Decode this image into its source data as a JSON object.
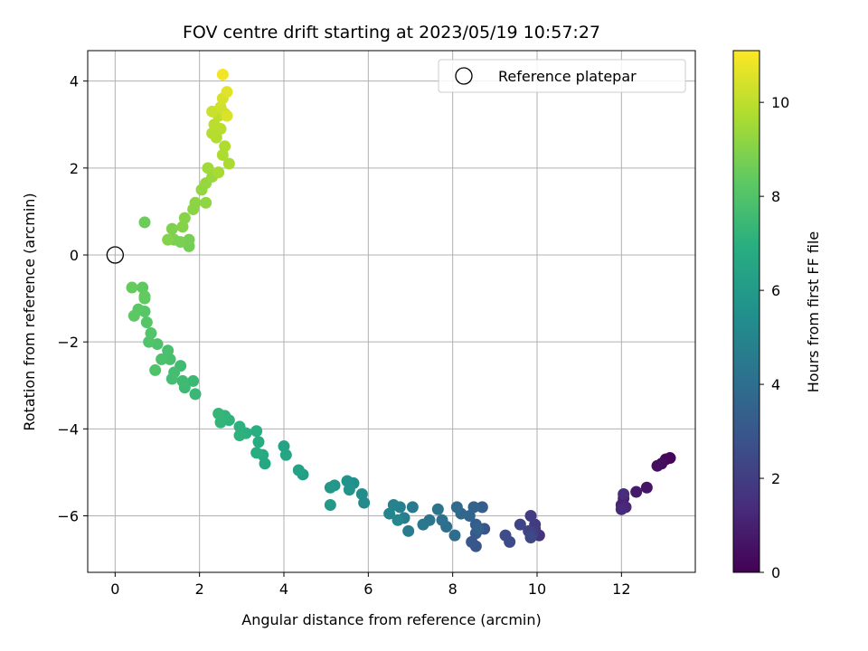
{
  "chart_data": {
    "type": "scatter",
    "title": "FOV centre drift starting at 2023/05/19 10:57:27",
    "xlabel": "Angular distance from reference (arcmin)",
    "ylabel": "Rotation from reference (arcmin)",
    "xlim": [
      -0.65,
      13.75
    ],
    "ylim": [
      -7.3,
      4.7
    ],
    "xticks": [
      0,
      2,
      4,
      6,
      8,
      10,
      12
    ],
    "yticks": [
      -6,
      -4,
      -2,
      0,
      2,
      4
    ],
    "grid": true,
    "legend": {
      "location": "top-right",
      "entries": [
        "Reference platepar"
      ]
    },
    "reference_point": {
      "x": 0,
      "y": 0,
      "label": "Reference platepar"
    },
    "colorbar": {
      "label": "Hours from first FF file",
      "range": [
        0,
        11.1
      ],
      "ticks": [
        0,
        2,
        4,
        6,
        8,
        10
      ],
      "colormap": "viridis"
    },
    "points": [
      [
        13.15,
        -4.67,
        0.1
      ],
      [
        13.05,
        -4.7,
        0.2
      ],
      [
        12.95,
        -4.8,
        0.3
      ],
      [
        12.85,
        -4.85,
        0.4
      ],
      [
        12.6,
        -5.35,
        0.6
      ],
      [
        12.35,
        -5.45,
        0.8
      ],
      [
        12.05,
        -5.6,
        1.0
      ],
      [
        12.0,
        -5.75,
        1.1
      ],
      [
        12.1,
        -5.8,
        1.2
      ],
      [
        12.0,
        -5.85,
        1.3
      ],
      [
        12.05,
        -5.5,
        1.4
      ],
      [
        10.05,
        -6.45,
        1.6
      ],
      [
        9.95,
        -6.3,
        1.7
      ],
      [
        9.85,
        -6.45,
        1.8
      ],
      [
        9.95,
        -6.2,
        1.9
      ],
      [
        9.85,
        -6.0,
        2.0
      ],
      [
        9.9,
        -6.4,
        2.1
      ],
      [
        9.8,
        -6.35,
        2.2
      ],
      [
        9.6,
        -6.2,
        2.3
      ],
      [
        9.85,
        -6.5,
        2.4
      ],
      [
        9.35,
        -6.6,
        2.5
      ],
      [
        9.25,
        -6.45,
        2.6
      ],
      [
        8.75,
        -6.3,
        2.8
      ],
      [
        8.55,
        -6.7,
        2.9
      ],
      [
        8.45,
        -6.6,
        3.0
      ],
      [
        8.55,
        -6.4,
        3.1
      ],
      [
        8.55,
        -6.2,
        3.2
      ],
      [
        8.7,
        -5.8,
        3.3
      ],
      [
        8.6,
        -6.3,
        3.4
      ],
      [
        8.5,
        -5.8,
        3.5
      ],
      [
        8.4,
        -6.0,
        3.6
      ],
      [
        8.2,
        -5.95,
        3.7
      ],
      [
        8.1,
        -5.8,
        3.8
      ],
      [
        8.05,
        -6.45,
        3.9
      ],
      [
        7.85,
        -6.25,
        4.0
      ],
      [
        7.75,
        -6.1,
        4.1
      ],
      [
        7.65,
        -5.85,
        4.2
      ],
      [
        7.45,
        -6.1,
        4.3
      ],
      [
        7.3,
        -6.2,
        4.4
      ],
      [
        7.05,
        -5.8,
        4.5
      ],
      [
        6.95,
        -6.35,
        4.6
      ],
      [
        6.85,
        -6.05,
        4.7
      ],
      [
        6.75,
        -5.8,
        4.8
      ],
      [
        6.6,
        -5.75,
        4.9
      ],
      [
        6.5,
        -5.95,
        5.0
      ],
      [
        6.7,
        -6.1,
        5.1
      ],
      [
        5.9,
        -5.7,
        5.3
      ],
      [
        5.85,
        -5.5,
        5.4
      ],
      [
        5.65,
        -5.25,
        5.5
      ],
      [
        5.5,
        -5.2,
        5.6
      ],
      [
        5.55,
        -5.4,
        5.7
      ],
      [
        5.2,
        -5.3,
        5.8
      ],
      [
        5.1,
        -5.35,
        5.9
      ],
      [
        5.1,
        -5.75,
        6.0
      ],
      [
        4.45,
        -5.05,
        6.2
      ],
      [
        4.35,
        -4.95,
        6.3
      ],
      [
        4.0,
        -4.4,
        6.4
      ],
      [
        4.05,
        -4.6,
        6.5
      ],
      [
        3.55,
        -4.8,
        6.6
      ],
      [
        3.5,
        -4.6,
        6.7
      ],
      [
        3.4,
        -4.3,
        6.8
      ],
      [
        3.35,
        -4.55,
        6.9
      ],
      [
        3.35,
        -4.05,
        6.95
      ],
      [
        3.1,
        -4.1,
        7.0
      ],
      [
        2.95,
        -3.95,
        7.05
      ],
      [
        2.95,
        -4.15,
        7.1
      ],
      [
        2.7,
        -3.8,
        7.15
      ],
      [
        2.6,
        -3.7,
        7.2
      ],
      [
        2.5,
        -3.85,
        7.25
      ],
      [
        2.45,
        -3.65,
        7.3
      ],
      [
        1.9,
        -3.2,
        7.4
      ],
      [
        1.85,
        -2.9,
        7.45
      ],
      [
        1.65,
        -3.05,
        7.5
      ],
      [
        1.6,
        -2.9,
        7.55
      ],
      [
        1.55,
        -2.55,
        7.6
      ],
      [
        1.4,
        -2.7,
        7.65
      ],
      [
        1.35,
        -2.85,
        7.7
      ],
      [
        1.3,
        -2.4,
        7.75
      ],
      [
        1.25,
        -2.2,
        7.8
      ],
      [
        1.1,
        -2.4,
        7.85
      ],
      [
        1.0,
        -2.05,
        7.9
      ],
      [
        0.95,
        -2.65,
        7.95
      ],
      [
        0.8,
        -2.0,
        8.0
      ],
      [
        0.85,
        -1.8,
        8.05
      ],
      [
        0.75,
        -1.55,
        8.1
      ],
      [
        0.7,
        -1.3,
        8.15
      ],
      [
        0.55,
        -1.25,
        8.2
      ],
      [
        0.45,
        -1.4,
        8.25
      ],
      [
        0.7,
        -1.0,
        8.3
      ],
      [
        0.65,
        -0.75,
        8.35
      ],
      [
        0.7,
        -0.95,
        8.4
      ],
      [
        0.4,
        -0.75,
        8.45
      ],
      [
        0.7,
        0.75,
        8.55
      ],
      [
        1.75,
        0.2,
        8.7
      ],
      [
        1.75,
        0.35,
        8.75
      ],
      [
        1.55,
        0.3,
        8.8
      ],
      [
        1.4,
        0.35,
        8.85
      ],
      [
        1.35,
        0.6,
        8.9
      ],
      [
        1.25,
        0.35,
        8.95
      ],
      [
        1.6,
        0.65,
        9.0
      ],
      [
        1.65,
        0.85,
        9.05
      ],
      [
        1.85,
        1.05,
        9.1
      ],
      [
        1.9,
        1.2,
        9.15
      ],
      [
        2.15,
        1.2,
        9.2
      ],
      [
        2.05,
        1.5,
        9.25
      ],
      [
        2.15,
        1.65,
        9.3
      ],
      [
        2.3,
        1.8,
        9.4
      ],
      [
        2.2,
        2.0,
        9.5
      ],
      [
        2.45,
        1.9,
        9.6
      ],
      [
        2.7,
        2.1,
        9.65
      ],
      [
        2.55,
        2.3,
        9.7
      ],
      [
        2.6,
        2.5,
        9.75
      ],
      [
        2.4,
        2.7,
        9.8
      ],
      [
        2.3,
        2.8,
        9.85
      ],
      [
        2.5,
        2.9,
        9.9
      ],
      [
        2.35,
        3.0,
        9.95
      ],
      [
        2.45,
        3.2,
        10.0
      ],
      [
        2.6,
        3.25,
        10.1
      ],
      [
        2.3,
        3.3,
        10.2
      ],
      [
        2.5,
        3.4,
        10.3
      ],
      [
        2.55,
        3.6,
        10.4
      ],
      [
        2.65,
        3.75,
        10.6
      ],
      [
        2.55,
        4.15,
        10.9
      ],
      [
        2.65,
        3.2,
        10.5
      ]
    ]
  }
}
